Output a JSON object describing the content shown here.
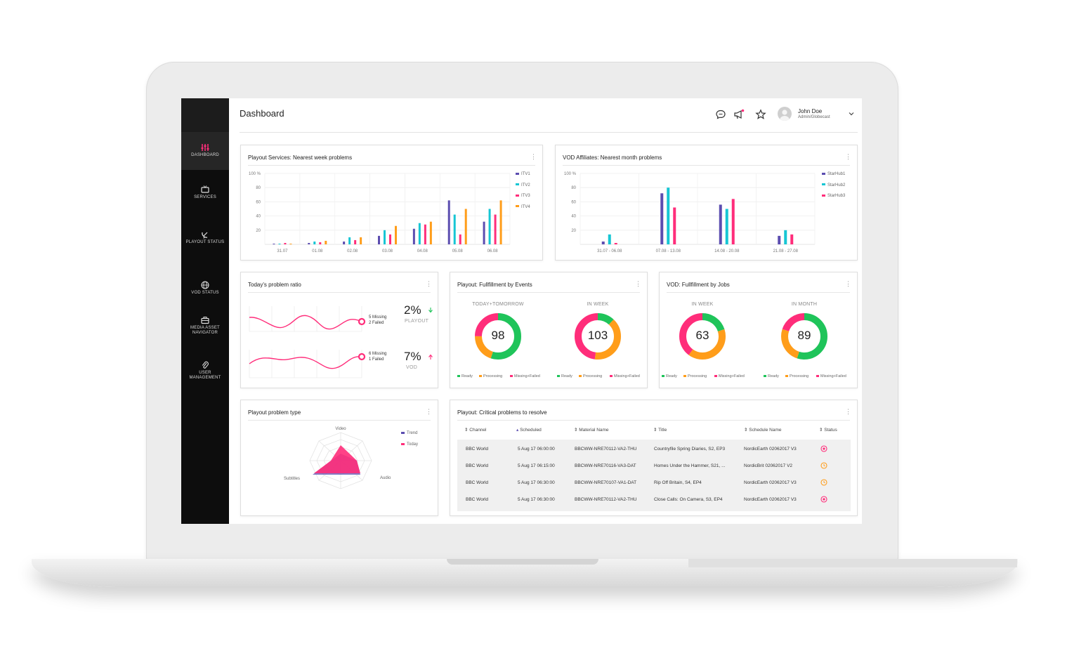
{
  "app": {
    "page_title": "Dashboard"
  },
  "colors": {
    "purple": "#5b4db0",
    "cyan": "#16c6d4",
    "pink": "#ff2d7a",
    "orange": "#ff9d1a",
    "green": "#1fc45a"
  },
  "sidebar": {
    "items": [
      {
        "label": "DASHBOARD",
        "icon": "equalizer-icon",
        "active": true
      },
      {
        "label": "SERVICES",
        "icon": "tv-icon"
      },
      {
        "label": "PLAYOUT STATUS",
        "icon": "satellite-dish-icon"
      },
      {
        "label": "VOD STATUS",
        "icon": "globe-icon"
      },
      {
        "label": "MEDIA ASSET NAVIGATOR",
        "icon": "briefcase-icon"
      },
      {
        "label": "USER MANAGEMENT",
        "icon": "paperclip-icon"
      }
    ]
  },
  "header": {
    "icons": [
      "chat-icon",
      "megaphone-icon",
      "star-icon"
    ],
    "user_name": "John Doe",
    "user_role": "Admin/Globecast"
  },
  "cards": {
    "playout_week": {
      "title": "Playout Services: Nearest week problems"
    },
    "vod_month": {
      "title": "VOD Affiliates: Nearest month problems"
    },
    "ratio": {
      "title": "Today's problem ratio",
      "playout": {
        "value": "2%",
        "label": "PLAYOUT",
        "ann1": "5 Missing",
        "ann2": "2 Failed"
      },
      "vod": {
        "value": "7%",
        "label": "VOD",
        "ann1": "6 Missing",
        "ann2": "1 Failed"
      }
    },
    "events": {
      "title": "Playout: Fullfillment by Events"
    },
    "jobs": {
      "title": "VOD: Fullfillment by Jobs"
    },
    "problem_type": {
      "title": "Playout problem type"
    },
    "critical": {
      "title": "Playout: Critical problems to resolve",
      "columns": [
        "Channel",
        "Scheduled",
        "Material Name",
        "Title",
        "Schedule Name",
        "Status"
      ],
      "rows": [
        {
          "channel": "BBC World",
          "scheduled": "5 Aug 17  06:00:00",
          "material": "BBCWW-NRE70112-VA2-THU",
          "title": "Countryfile Spring Diaries, S2, EP3",
          "schedule": "NordicEarth 02062017 V3",
          "status": "error"
        },
        {
          "channel": "BBC World",
          "scheduled": "5 Aug 17  06:15:00",
          "material": "BBCWW-NRE70116-VA3-DAT",
          "title": "Homes Under the Hammer, S21, ...",
          "schedule": "NordicBrit 02062017 V2",
          "status": "pending"
        },
        {
          "channel": "BBC World",
          "scheduled": "5 Aug 17  06:30:00",
          "material": "BBCWW-NRE70107-VA1-DAT",
          "title": "Rip Off Britain, S4, EP4",
          "schedule": "NordicEarth 02062017 V3",
          "status": "pending"
        },
        {
          "channel": "BBC World",
          "scheduled": "5 Aug 17  06:30:00",
          "material": "BBCWW-NRE70112-VA2-THU",
          "title": "Close Calls: On Camera, S3, EP4",
          "schedule": "NordicEarth 02062017 V3",
          "status": "error"
        }
      ]
    }
  },
  "chart_data": [
    {
      "type": "bar",
      "title": "Playout Services: Nearest week problems",
      "categories": [
        "31.07",
        "01.08",
        "02.08",
        "03.08",
        "04.08",
        "05.08",
        "06.08"
      ],
      "ylim": [
        0,
        100
      ],
      "yticks": [
        "100 %",
        "80",
        "60",
        "40",
        "20"
      ],
      "series": [
        {
          "name": "ITV1",
          "color": "#5b4db0",
          "values": [
            1,
            2,
            4,
            12,
            22,
            62,
            32
          ]
        },
        {
          "name": "ITV2",
          "color": "#16c6d4",
          "values": [
            1,
            4,
            10,
            20,
            30,
            42,
            50
          ]
        },
        {
          "name": "ITV3",
          "color": "#ff2d7a",
          "values": [
            2,
            3,
            6,
            14,
            28,
            14,
            42
          ]
        },
        {
          "name": "ITV4",
          "color": "#ff9d1a",
          "values": [
            1,
            5,
            10,
            26,
            32,
            50,
            62
          ]
        }
      ]
    },
    {
      "type": "bar",
      "title": "VOD Affiliates: Nearest month problems",
      "categories": [
        "31.07 - 06.08",
        "07.08 - 13.08",
        "14.08 - 20.08",
        "21.08 - 27.08"
      ],
      "ylim": [
        0,
        100
      ],
      "yticks": [
        "100 %",
        "80",
        "60",
        "40",
        "20"
      ],
      "series": [
        {
          "name": "StarHub1",
          "color": "#5b4db0",
          "values": [
            4,
            72,
            56,
            12
          ]
        },
        {
          "name": "StarHub2",
          "color": "#16c6d4",
          "values": [
            14,
            80,
            50,
            20
          ]
        },
        {
          "name": "StarHub3",
          "color": "#ff2d7a",
          "values": [
            2,
            52,
            64,
            14
          ]
        }
      ]
    },
    {
      "type": "pie",
      "title": "Playout: Fullfillment by Events",
      "legend": [
        "Ready",
        "Processing",
        "Missing+Failed"
      ],
      "donuts": [
        {
          "caption": "TODAY+TOMORROW",
          "value": "98",
          "slices": [
            55,
            20,
            25
          ]
        },
        {
          "caption": "IN WEEK",
          "value": "103",
          "slices": [
            12,
            40,
            48
          ]
        }
      ]
    },
    {
      "type": "pie",
      "title": "VOD: Fullfillment by Jobs",
      "legend": [
        "Ready",
        "Processing",
        "Missing+Failed"
      ],
      "donuts": [
        {
          "caption": "IN WEEK",
          "value": "63",
          "slices": [
            20,
            40,
            40
          ]
        },
        {
          "caption": "IN MONTH",
          "value": "89",
          "slices": [
            55,
            25,
            20
          ]
        }
      ]
    },
    {
      "type": "radar",
      "title": "Playout problem type",
      "axes": [
        "Video",
        "Audio",
        "Subtitles"
      ],
      "series": [
        {
          "name": "Trend",
          "color": "#5b4db0"
        },
        {
          "name": "Today",
          "color": "#ff2d7a"
        }
      ]
    }
  ]
}
